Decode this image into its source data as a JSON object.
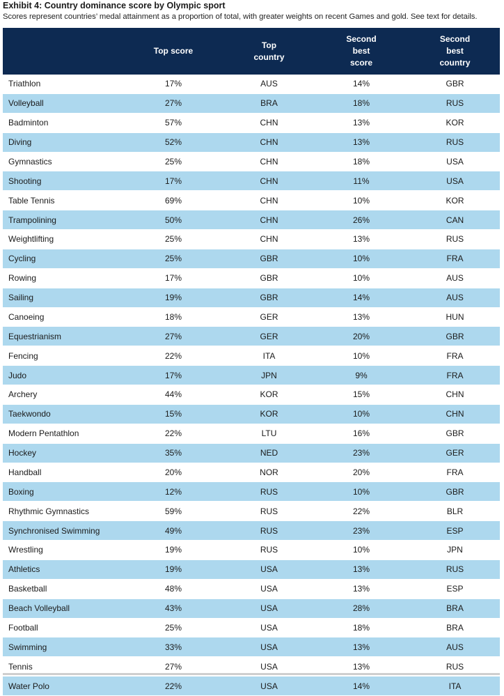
{
  "title": "Exhibit 4: Country dominance score by Olympic sport",
  "subtitle": "Scores represent countries’ medal attainment as a proportion of total, with greater weights on recent Games and gold. See text for details.",
  "columns": [
    "",
    "Top score",
    "Top country",
    "Second best score",
    "Second best country"
  ],
  "rows": [
    [
      "Triathlon",
      "17%",
      "AUS",
      "14%",
      "GBR"
    ],
    [
      "Volleyball",
      "27%",
      "BRA",
      "18%",
      "RUS"
    ],
    [
      "Badminton",
      "57%",
      "CHN",
      "13%",
      "KOR"
    ],
    [
      "Diving",
      "52%",
      "CHN",
      "13%",
      "RUS"
    ],
    [
      "Gymnastics",
      "25%",
      "CHN",
      "18%",
      "USA"
    ],
    [
      "Shooting",
      "17%",
      "CHN",
      "11%",
      "USA"
    ],
    [
      "Table Tennis",
      "69%",
      "CHN",
      "10%",
      "KOR"
    ],
    [
      "Trampolining",
      "50%",
      "CHN",
      "26%",
      "CAN"
    ],
    [
      "Weightlifting",
      "25%",
      "CHN",
      "13%",
      "RUS"
    ],
    [
      "Cycling",
      "25%",
      "GBR",
      "10%",
      "FRA"
    ],
    [
      "Rowing",
      "17%",
      "GBR",
      "10%",
      "AUS"
    ],
    [
      "Sailing",
      "19%",
      "GBR",
      "14%",
      "AUS"
    ],
    [
      "Canoeing",
      "18%",
      "GER",
      "13%",
      "HUN"
    ],
    [
      "Equestrianism",
      "27%",
      "GER",
      "20%",
      "GBR"
    ],
    [
      "Fencing",
      "22%",
      "ITA",
      "10%",
      "FRA"
    ],
    [
      "Judo",
      "17%",
      "JPN",
      "9%",
      "FRA"
    ],
    [
      "Archery",
      "44%",
      "KOR",
      "15%",
      "CHN"
    ],
    [
      "Taekwondo",
      "15%",
      "KOR",
      "10%",
      "CHN"
    ],
    [
      "Modern Pentathlon",
      "22%",
      "LTU",
      "16%",
      "GBR"
    ],
    [
      "Hockey",
      "35%",
      "NED",
      "23%",
      "GER"
    ],
    [
      "Handball",
      "20%",
      "NOR",
      "20%",
      "FRA"
    ],
    [
      "Boxing",
      "12%",
      "RUS",
      "10%",
      "GBR"
    ],
    [
      "Rhythmic Gymnastics",
      "59%",
      "RUS",
      "22%",
      "BLR"
    ],
    [
      "Synchronised Swimming",
      "49%",
      "RUS",
      "23%",
      "ESP"
    ],
    [
      "Wrestling",
      "19%",
      "RUS",
      "10%",
      "JPN"
    ],
    [
      "Athletics",
      "19%",
      "USA",
      "13%",
      "RUS"
    ],
    [
      "Basketball",
      "48%",
      "USA",
      "13%",
      "ESP"
    ],
    [
      "Beach Volleyball",
      "43%",
      "USA",
      "28%",
      "BRA"
    ],
    [
      "Football",
      "25%",
      "USA",
      "18%",
      "BRA"
    ],
    [
      "Swimming",
      "33%",
      "USA",
      "13%",
      "AUS"
    ],
    [
      "Tennis",
      "27%",
      "USA",
      "13%",
      "RUS"
    ],
    [
      "Water Polo",
      "22%",
      "USA",
      "14%",
      "ITA"
    ]
  ],
  "colors": {
    "header_bg": "#0d2a52",
    "stripe_bg": "#add8ee",
    "header_text": "#ffffff"
  }
}
